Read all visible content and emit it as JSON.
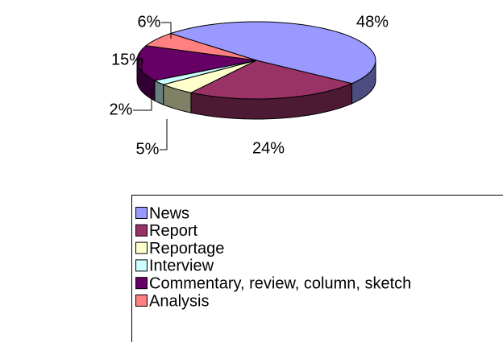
{
  "chart_data": {
    "type": "pie",
    "categories": [
      "News",
      "Report",
      "Reportage",
      "Interview",
      "Commentary, review, column, sketch",
      "Analysis"
    ],
    "values": [
      48,
      24,
      5,
      2,
      15,
      6
    ],
    "value_labels": [
      "48%",
      "24%",
      "5%",
      "2%",
      "15%",
      "6%"
    ],
    "colors": [
      "#9999ff",
      "#993366",
      "#ffffcc",
      "#ccffff",
      "#660066",
      "#ff8080"
    ],
    "legend": "bottom"
  }
}
